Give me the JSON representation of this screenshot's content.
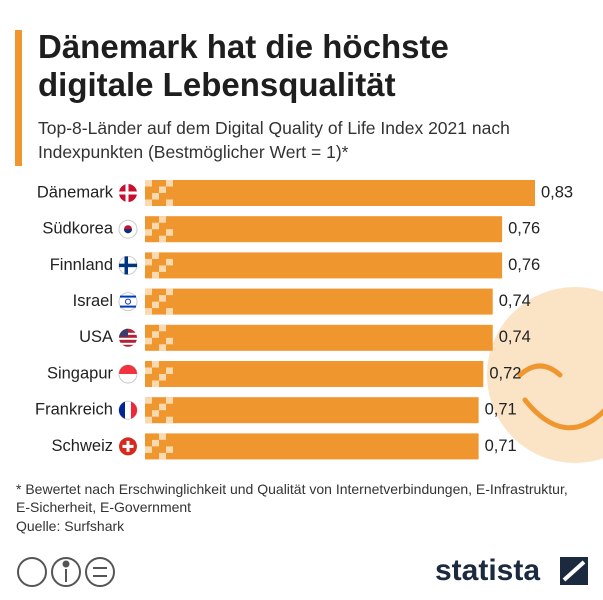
{
  "chart_data": {
    "type": "bar",
    "title": "Dänemark hat die höchste digitale Lebensqualität",
    "subtitle": "Top-8-Länder auf dem Digital Quality of Life Index 2021 nach Indexpunkten (Bestmöglicher Wert = 1)*",
    "categories": [
      "Dänemark",
      "Südkorea",
      "Finnland",
      "Israel",
      "USA",
      "Singapur",
      "Frankreich",
      "Schweiz"
    ],
    "values": [
      0.83,
      0.76,
      0.76,
      0.74,
      0.74,
      0.72,
      0.71,
      0.71
    ],
    "value_labels": [
      "0,83",
      "0,76",
      "0,76",
      "0,74",
      "0,74",
      "0,72",
      "0,71",
      "0,71"
    ],
    "color": "#f0962e",
    "footnote": "* Bewertet nach Erschwinglichkeit und Qualität von Internetverbindungen, E-Infrastruktur, E-Sicherheit, E-Government",
    "source": "Quelle: Surfshark"
  }
}
